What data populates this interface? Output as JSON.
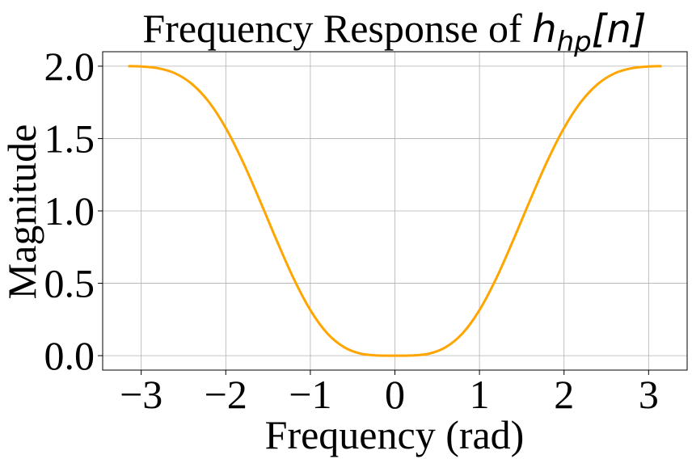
{
  "chart_data": {
    "type": "line",
    "title": {
      "prefix": "Frequency Response of ",
      "math_base": "h",
      "math_subscript": "hp",
      "math_suffix": "[n]"
    },
    "xlabel": "Frequency (rad)",
    "ylabel": "Magnitude",
    "xlim": [
      -3.4557,
      3.4557
    ],
    "ylim": [
      -0.1,
      2.1
    ],
    "xticks": [
      -3,
      -2,
      -1,
      0,
      1,
      2,
      3
    ],
    "xtick_labels": [
      "−3",
      "−2",
      "−1",
      "0",
      "1",
      "2",
      "3"
    ],
    "yticks": [
      0.0,
      0.5,
      1.0,
      1.5,
      2.0
    ],
    "ytick_labels": [
      "0.0",
      "0.5",
      "1.0",
      "1.5",
      "2.0"
    ],
    "grid": true,
    "legend": "none",
    "series": [
      {
        "color": "#FFA500",
        "x": [
          -3.1416,
          -3.0,
          -2.8,
          -2.6,
          -2.4,
          -2.2,
          -2.0,
          -1.8,
          -1.6,
          -1.4,
          -1.2,
          -1.0,
          -0.8,
          -0.6,
          -0.4,
          -0.2,
          0.0,
          0.2,
          0.4,
          0.6,
          0.8,
          1.0,
          1.2,
          1.4,
          1.6,
          1.8,
          2.0,
          2.2,
          2.4,
          2.6,
          2.8,
          3.0,
          3.1416
        ],
        "y": [
          2.0,
          1.998,
          1.986,
          1.951,
          1.877,
          1.753,
          1.573,
          1.342,
          1.076,
          0.799,
          0.536,
          0.315,
          0.154,
          0.058,
          0.013,
          0.001,
          0.0,
          0.001,
          0.013,
          0.058,
          0.154,
          0.315,
          0.536,
          0.799,
          1.076,
          1.342,
          1.573,
          1.753,
          1.877,
          1.951,
          1.986,
          1.998,
          2.0
        ]
      }
    ]
  }
}
